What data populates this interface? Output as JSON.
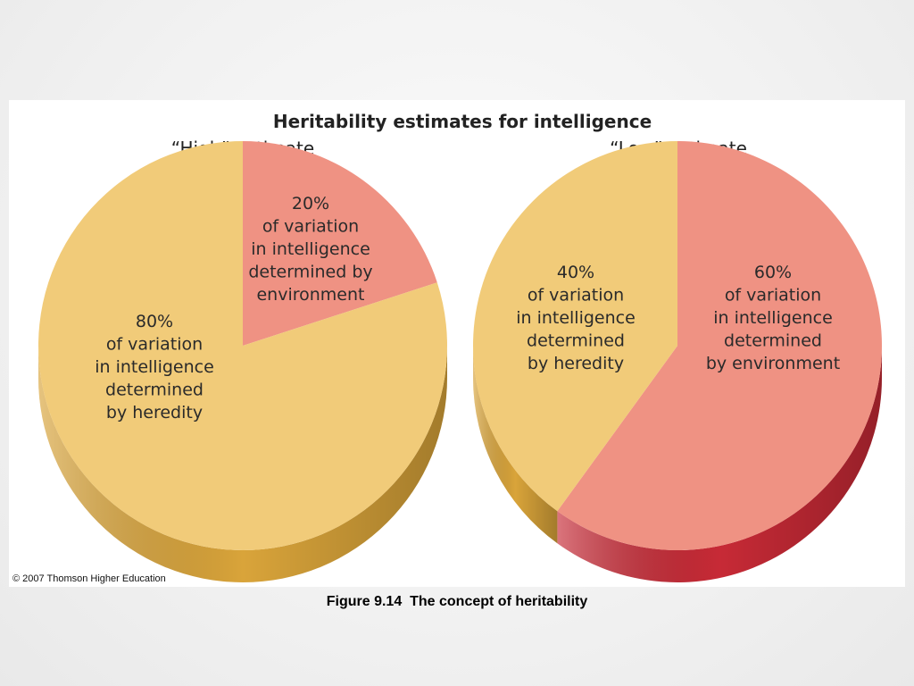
{
  "chart_data": {
    "type": "pie",
    "title": "Heritability estimates for intelligence",
    "pies": [
      {
        "subtitle": "“High” estimate",
        "slices": [
          {
            "value": 20,
            "percent_label": "20%",
            "label_lines": [
              "of variation",
              "in intelligence",
              "determined by",
              "environment"
            ],
            "color": "#ef9283",
            "side_color": "#c9473f"
          },
          {
            "value": 80,
            "percent_label": "80%",
            "label_lines": [
              "of variation",
              "in intelligence",
              "determined",
              "by heredity"
            ],
            "color": "#f1cb79",
            "side_color": "#d9a43a"
          }
        ]
      },
      {
        "subtitle": "“Low” estimate",
        "slices": [
          {
            "value": 60,
            "percent_label": "60%",
            "label_lines": [
              "of variation",
              "in intelligence",
              "determined",
              "by environment"
            ],
            "color": "#ef9283",
            "side_color": "#c72a36"
          },
          {
            "value": 40,
            "percent_label": "40%",
            "label_lines": [
              "of variation",
              "in intelligence",
              "determined",
              "by heredity"
            ],
            "color": "#f1cb79",
            "side_color": "#d9a43a"
          }
        ]
      }
    ]
  },
  "copyright": "© 2007 Thomson Higher Education",
  "caption": "Figure 9.14  The concept of heritability"
}
